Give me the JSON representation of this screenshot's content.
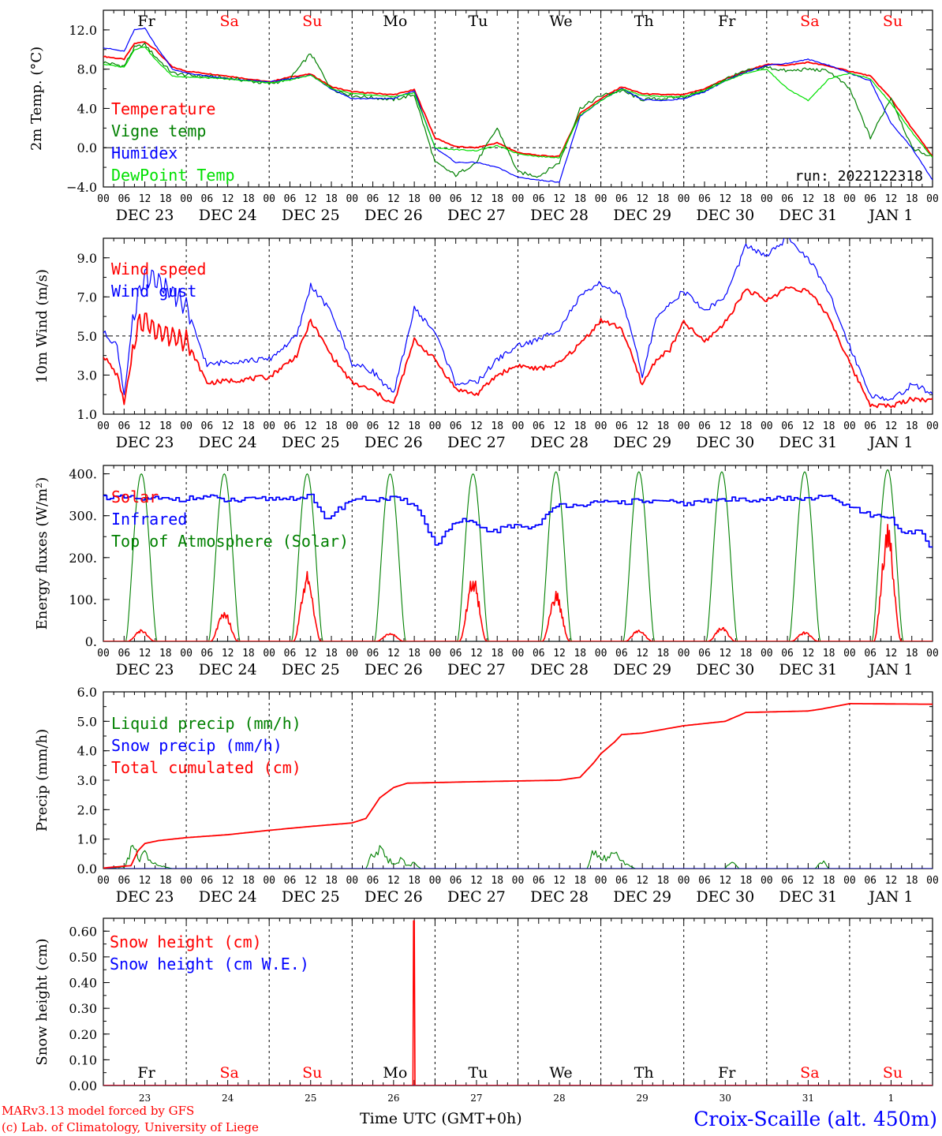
{
  "run_label": "run: 2022122318",
  "footer": {
    "model_credit": "MARv3.13 model forced by GFS",
    "lab_credit": "(c) Lab. of Climatology, University of Liege",
    "time_axis_label": "Time UTC (GMT+0h)",
    "station": "Croix-Scaille (alt. 450m)"
  },
  "days": [
    {
      "weekday": "Fr",
      "date": "DEC 23",
      "num": "23",
      "weekend": false
    },
    {
      "weekday": "Sa",
      "date": "DEC 24",
      "num": "24",
      "weekend": true
    },
    {
      "weekday": "Su",
      "date": "DEC 25",
      "num": "25",
      "weekend": true
    },
    {
      "weekday": "Mo",
      "date": "DEC 26",
      "num": "26",
      "weekend": false
    },
    {
      "weekday": "Tu",
      "date": "DEC 27",
      "num": "27",
      "weekend": false
    },
    {
      "weekday": "We",
      "date": "DEC 28",
      "num": "28",
      "weekend": false
    },
    {
      "weekday": "Th",
      "date": "DEC 29",
      "num": "29",
      "weekend": false
    },
    {
      "weekday": "Fr",
      "date": "DEC 30",
      "num": "30",
      "weekend": false
    },
    {
      "weekday": "Sa",
      "date": "DEC 31",
      "num": "31",
      "weekend": true
    },
    {
      "weekday": "Su",
      "date": "JAN  1",
      "num": "1",
      "weekend": true
    }
  ],
  "hour_ticks": [
    "00",
    "06",
    "12",
    "18"
  ],
  "colors": {
    "red": "#ff0000",
    "green": "#008000",
    "blue": "#0000ff",
    "lightgreen": "#00e000"
  },
  "chart_data": [
    {
      "type": "line",
      "ylabel": "2m Temp. (°C)",
      "ylim": [
        -4,
        14
      ],
      "yticks": [
        "12.0",
        "8.0",
        "4.0",
        "0.0",
        "−4.0"
      ],
      "ytick_values": [
        12,
        8,
        4,
        0,
        -4
      ],
      "reference_line": 0,
      "x_hours_since_dec23_00": [
        0,
        6,
        9,
        12,
        15,
        20,
        24,
        36,
        48,
        54,
        60,
        66,
        72,
        84,
        90,
        96,
        102,
        108,
        114,
        120,
        126,
        132,
        138,
        144,
        150,
        156,
        162,
        168,
        174,
        180,
        186,
        192,
        198,
        204,
        210,
        216,
        222,
        228,
        234,
        240
      ],
      "series": [
        {
          "name": "Temperature",
          "color": "#ff0000",
          "values": [
            9.3,
            9.0,
            10.6,
            10.8,
            10.0,
            8.2,
            7.8,
            7.3,
            6.7,
            7.2,
            7.5,
            6.2,
            5.7,
            5.4,
            5.9,
            1.0,
            0.1,
            0.0,
            0.5,
            -0.5,
            -0.8,
            -0.9,
            3.5,
            5.0,
            6.2,
            5.5,
            5.4,
            5.4,
            6.0,
            7.0,
            7.8,
            8.5,
            8.4,
            8.7,
            8.3,
            7.8,
            7.3,
            5.0,
            2.0,
            -0.9
          ]
        },
        {
          "name": "Vigne temp",
          "color": "#008000",
          "values": [
            8.7,
            8.3,
            10.2,
            10.5,
            9.3,
            7.6,
            7.4,
            7.1,
            6.5,
            7.0,
            9.6,
            6.0,
            5.3,
            4.9,
            5.4,
            -1.5,
            -2.8,
            -1.5,
            2.0,
            -2.5,
            -2.9,
            -1.5,
            4.0,
            5.3,
            5.8,
            4.9,
            5.0,
            5.2,
            5.8,
            7.0,
            7.8,
            8.2,
            7.8,
            8.0,
            7.8,
            6.0,
            1.0,
            5.1,
            0.0,
            -1.0
          ]
        },
        {
          "name": "Humidex",
          "color": "#0000ff",
          "values": [
            10.2,
            9.8,
            12.0,
            12.2,
            10.5,
            8.0,
            7.6,
            7.0,
            6.7,
            7.0,
            7.4,
            6.0,
            5.0,
            5.0,
            5.8,
            0.0,
            -1.5,
            -1.5,
            -2.0,
            -3.0,
            -3.3,
            -3.5,
            3.2,
            4.8,
            6.0,
            4.9,
            4.8,
            5.0,
            5.7,
            6.8,
            7.7,
            8.4,
            8.6,
            9.0,
            8.4,
            7.6,
            6.8,
            2.5,
            0.0,
            -3.3
          ]
        },
        {
          "name": "DewPoint Temp",
          "color": "#00e000",
          "values": [
            8.5,
            8.2,
            10.0,
            10.3,
            9.0,
            7.3,
            7.2,
            7.0,
            6.6,
            6.9,
            7.4,
            6.0,
            5.5,
            5.2,
            5.6,
            0.0,
            -0.2,
            -0.3,
            0.2,
            -0.6,
            -0.9,
            -1.0,
            3.3,
            4.8,
            6.0,
            5.3,
            5.2,
            5.2,
            5.8,
            6.8,
            7.6,
            8.0,
            6.0,
            4.8,
            7.0,
            7.6,
            7.0,
            4.5,
            1.6,
            -1.0
          ]
        }
      ]
    },
    {
      "type": "line",
      "ylabel": "10m Wind (m/s)",
      "ylim": [
        1,
        10
      ],
      "yticks": [
        "9.0",
        "7.0",
        "5.0",
        "3.0",
        "1.0"
      ],
      "ytick_values": [
        9,
        7,
        5,
        3,
        1
      ],
      "reference_line": 5,
      "x_hours_since_dec23_00": [
        0,
        4,
        6,
        8,
        10,
        12,
        16,
        20,
        24,
        30,
        36,
        48,
        56,
        60,
        66,
        72,
        78,
        84,
        90,
        96,
        102,
        108,
        114,
        120,
        126,
        132,
        138,
        144,
        150,
        156,
        160,
        164,
        168,
        174,
        180,
        186,
        192,
        198,
        204,
        210,
        216,
        222,
        228,
        234,
        240
      ],
      "series": [
        {
          "name": "Wind speed",
          "color": "#ff0000",
          "values": [
            4.0,
            3.0,
            1.6,
            3.5,
            5.6,
            5.8,
            5.2,
            5.0,
            4.8,
            2.6,
            2.7,
            2.9,
            4.0,
            5.8,
            4.0,
            2.6,
            2.2,
            1.5,
            4.8,
            3.8,
            2.3,
            2.0,
            3.0,
            3.5,
            3.3,
            3.6,
            4.6,
            5.8,
            5.4,
            2.5,
            3.8,
            4.3,
            5.7,
            4.7,
            5.7,
            7.4,
            6.8,
            7.5,
            7.3,
            6.0,
            3.6,
            1.5,
            1.4,
            1.8,
            1.7
          ]
        },
        {
          "name": "Wind gust",
          "color": "#0000ff",
          "values": [
            5.2,
            4.5,
            2.0,
            5.0,
            7.0,
            8.0,
            7.8,
            7.2,
            6.5,
            3.5,
            3.7,
            3.8,
            5.0,
            7.6,
            6.2,
            3.6,
            3.2,
            2.0,
            6.4,
            5.2,
            2.6,
            2.6,
            3.8,
            4.5,
            4.8,
            5.4,
            7.0,
            7.7,
            7.0,
            3.0,
            5.8,
            6.7,
            7.3,
            6.3,
            7.0,
            9.6,
            9.1,
            10.0,
            9.0,
            7.2,
            4.5,
            2.0,
            1.7,
            2.5,
            2.1
          ]
        }
      ]
    },
    {
      "type": "line",
      "ylabel": "Energy fluxes (W/m²)",
      "ylim": [
        0,
        420
      ],
      "yticks": [
        "400.",
        "300.",
        "200.",
        "100.",
        "0."
      ],
      "ytick_values": [
        400,
        300,
        200,
        100,
        0
      ],
      "reference_line": null,
      "solar_noon_hours": [
        11,
        35,
        59,
        83,
        107,
        131,
        155,
        179,
        203,
        227
      ],
      "series": [
        {
          "name": "Solar",
          "color": "#ff0000",
          "daily_peak": [
            25,
            65,
            145,
            18,
            140,
            105,
            25,
            30,
            20,
            245
          ]
        },
        {
          "name": "Infrared",
          "color": "#0000ff",
          "x_hours_since_dec23_00": [
            0,
            12,
            24,
            30,
            36,
            48,
            60,
            64,
            72,
            84,
            90,
            96,
            100,
            104,
            108,
            112,
            116,
            120,
            124,
            128,
            132,
            138,
            144,
            156,
            168,
            180,
            192,
            204,
            210,
            216,
            222,
            228,
            232,
            236,
            240
          ],
          "values": [
            345,
            340,
            340,
            345,
            335,
            340,
            345,
            290,
            340,
            340,
            330,
            230,
            270,
            290,
            275,
            262,
            270,
            278,
            270,
            300,
            325,
            328,
            330,
            335,
            330,
            338,
            340,
            340,
            345,
            320,
            300,
            290,
            255,
            265,
            220
          ]
        },
        {
          "name": "Top of Atmosphere (Solar)",
          "color": "#008000",
          "daily_peak": [
            400,
            400,
            400,
            400,
            400,
            405,
            405,
            405,
            405,
            410
          ]
        }
      ]
    },
    {
      "type": "line",
      "ylabel": "Precip (mm/h)",
      "ylim": [
        0,
        6
      ],
      "yticks": [
        "6.0",
        "5.0",
        "4.0",
        "3.0",
        "2.0",
        "1.0",
        "0.0"
      ],
      "ytick_values": [
        6,
        5,
        4,
        3,
        2,
        1,
        0
      ],
      "reference_line": null,
      "series": [
        {
          "name": "Liquid precip (mm/h)",
          "color": "#008000",
          "x_hours_since_dec23_00": [
            0,
            6,
            9,
            10,
            12,
            14,
            16,
            20,
            76,
            78,
            80,
            82,
            84,
            86,
            88,
            90,
            92,
            140,
            142,
            144,
            146,
            148,
            150,
            152,
            154,
            180,
            182,
            184,
            206,
            208,
            210,
            240
          ],
          "values": [
            0,
            0.05,
            0.9,
            0.3,
            0.5,
            0.2,
            0.1,
            0,
            0,
            0.5,
            0.85,
            0.3,
            0.2,
            0.3,
            0.1,
            0.2,
            0,
            0,
            0.6,
            0.3,
            0.4,
            0.5,
            0.3,
            0.1,
            0,
            0,
            0.3,
            0,
            0,
            0.25,
            0,
            0
          ]
        },
        {
          "name": "Snow precip (mm/h)",
          "color": "#0000ff",
          "x_hours_since_dec23_00": [
            0,
            240
          ],
          "values": [
            0,
            0
          ]
        },
        {
          "name": "Total cumulated (cm)",
          "color": "#ff0000",
          "x_hours_since_dec23_00": [
            0,
            8,
            10,
            12,
            16,
            24,
            36,
            48,
            60,
            72,
            76,
            80,
            84,
            88,
            96,
            108,
            132,
            138,
            142,
            144,
            148,
            150,
            156,
            168,
            180,
            186,
            204,
            208,
            216,
            240
          ],
          "values": [
            0.02,
            0.1,
            0.6,
            0.85,
            0.95,
            1.05,
            1.15,
            1.3,
            1.43,
            1.55,
            1.7,
            2.4,
            2.75,
            2.9,
            2.92,
            2.95,
            3.0,
            3.1,
            3.6,
            3.9,
            4.3,
            4.55,
            4.6,
            4.85,
            5.0,
            5.3,
            5.35,
            5.42,
            5.6,
            5.58
          ]
        }
      ]
    },
    {
      "type": "line",
      "ylabel": "Snow height (cm)",
      "ylim": [
        0,
        0.65
      ],
      "yticks": [
        "0.60",
        "0.50",
        "0.40",
        "0.30",
        "0.20",
        "0.10",
        "0.00"
      ],
      "ytick_values": [
        0.6,
        0.5,
        0.4,
        0.3,
        0.2,
        0.1,
        0.0
      ],
      "reference_line": null,
      "series": [
        {
          "name": "Snow height (cm)",
          "color": "#ff0000",
          "x_hours_since_dec23_00": [
            0,
            89.6,
            89.8,
            90.0,
            90.2,
            240
          ],
          "values": [
            0,
            0,
            0.64,
            0.64,
            0,
            0
          ]
        },
        {
          "name": "Snow height (cm W.E.)",
          "color": "#0000ff",
          "x_hours_since_dec23_00": [
            0,
            240
          ],
          "values": [
            0,
            0
          ]
        }
      ]
    }
  ]
}
